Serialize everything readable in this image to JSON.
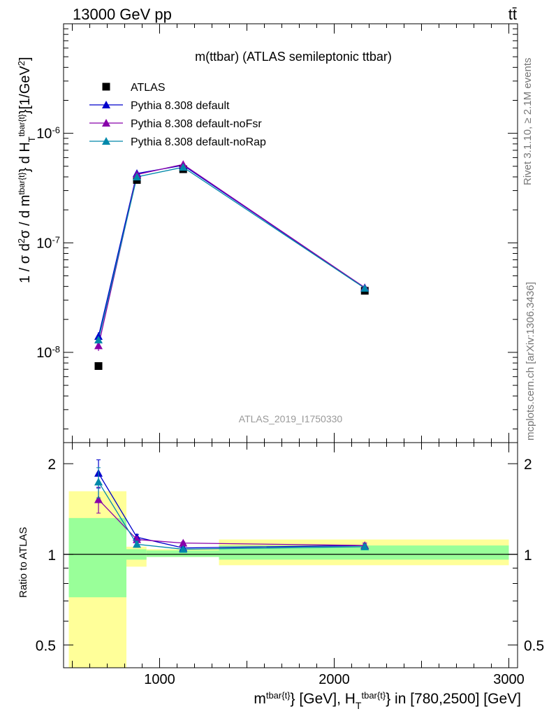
{
  "header": {
    "energy_label": "13000 GeV pp",
    "process_label": "tt̄",
    "side_label_top": "Rivet 3.1.10, ≥ 2.1M events",
    "side_label_bottom": "mcplots.cern.ch [arXiv:1306.3436]",
    "watermark": "ATLAS_2019_I1750330"
  },
  "colors": {
    "data": "#000000",
    "default": "#0000cc",
    "noFsr": "#8800aa",
    "noRap": "#0088aa",
    "band_outer": "#ffff99",
    "band_inner": "#99ff99"
  },
  "chart_data": [
    {
      "type": "scatter",
      "title": "m(ttbar) (ATLAS semileptonic ttbar)",
      "ylabel": "1 / σ d²σ / d m^{tbar{t}} d H_T^{tbar{t}} [1/GeV²]",
      "xlabel": "",
      "log_y": true,
      "xlim": [
        450,
        3050
      ],
      "ylim": [
        1.5e-09,
        1e-05
      ],
      "y_ticks": [
        "10^{-8}",
        "10^{-7}",
        "10^{-6}"
      ],
      "legend_position": "top-left",
      "series": [
        {
          "name": "ATLAS",
          "marker": "square",
          "x": [
            650,
            870,
            1135,
            2175
          ],
          "y": [
            7.5e-09,
            3.75e-07,
            4.7e-07,
            3.65e-08
          ]
        },
        {
          "name": "Pythia 8.308 default",
          "marker": "triangle",
          "x": [
            650,
            870,
            1135,
            2175
          ],
          "y": [
            1.4e-08,
            4.3e-07,
            5.1e-07,
            3.9e-08
          ],
          "yerr": [
            1.3e-09,
            1e-08,
            1e-08,
            1e-09
          ]
        },
        {
          "name": "Pythia 8.308 default-noFsr",
          "marker": "triangle",
          "x": [
            650,
            870,
            1135,
            2175
          ],
          "y": [
            1.15e-08,
            4.2e-07,
            5.2e-07,
            3.9e-08
          ],
          "yerr": [
            1.2e-09,
            1e-08,
            1e-08,
            1e-09
          ]
        },
        {
          "name": "Pythia 8.308 default-noRap",
          "marker": "triangle",
          "x": [
            650,
            870,
            1135,
            2175
          ],
          "y": [
            1.3e-08,
            4e-07,
            4.9e-07,
            3.85e-08
          ],
          "yerr": [
            1.3e-09,
            1e-08,
            1e-08,
            1e-09
          ]
        }
      ]
    },
    {
      "type": "scatter",
      "ylabel": "Ratio to ATLAS",
      "xlabel": "m^{tbar{t}} [GeV], H_T^{tbar{t}} in [780,2500] [GeV]",
      "log_y": true,
      "xlim": [
        450,
        3050
      ],
      "ylim": [
        0.42,
        2.35
      ],
      "x_ticks": [
        1000,
        2000,
        3000
      ],
      "y_ticks": [
        0.5,
        1,
        2
      ],
      "bands": [
        {
          "x0": 480,
          "x1": 810,
          "outer": [
            0.42,
            1.62
          ],
          "inner": [
            0.72,
            1.32
          ]
        },
        {
          "x0": 810,
          "x1": 925,
          "outer": [
            0.91,
            1.06
          ],
          "inner": [
            0.96,
            1.04
          ]
        },
        {
          "x0": 925,
          "x1": 1340,
          "outer": [
            0.98,
            1.04
          ],
          "inner": [
            0.98,
            1.03
          ]
        },
        {
          "x0": 1340,
          "x1": 3000,
          "outer": [
            0.92,
            1.12
          ],
          "inner": [
            0.96,
            1.07
          ]
        }
      ],
      "series": [
        {
          "name": "Pythia 8.308 default",
          "x": [
            650,
            870,
            1135,
            2175
          ],
          "y": [
            1.86,
            1.14,
            1.05,
            1.07
          ],
          "yerr": [
            0.2,
            0.025,
            0.01,
            0.02
          ]
        },
        {
          "name": "Pythia 8.308 default-noFsr",
          "x": [
            650,
            870,
            1135,
            2175
          ],
          "y": [
            1.52,
            1.12,
            1.09,
            1.07
          ],
          "yerr": [
            0.15,
            0.025,
            0.01,
            0.02
          ]
        },
        {
          "name": "Pythia 8.308 default-noRap",
          "x": [
            650,
            870,
            1135,
            2175
          ],
          "y": [
            1.74,
            1.08,
            1.04,
            1.06
          ],
          "yerr": [
            0.2,
            0.025,
            0.01,
            0.02
          ]
        }
      ]
    }
  ]
}
